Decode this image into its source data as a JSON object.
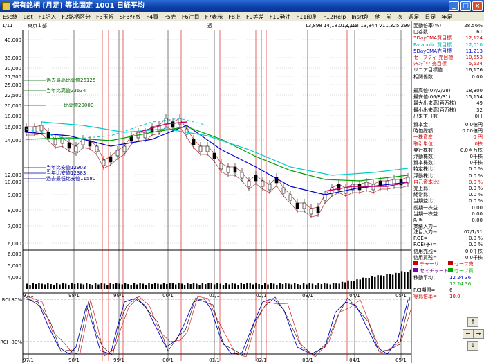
{
  "window": {
    "title": "保有銘柄 [月足] 等比固定  1001  日経平均",
    "minimize": "_",
    "maximize": "□",
    "close": "×"
  },
  "menu": [
    "Esc終",
    "List",
    "F1記入",
    "F2銘柄区分",
    "F3玉帳",
    "SF3ｸｫｵﾀ",
    "F4買",
    "F5売",
    "F6注目",
    "F7表示",
    "F8上",
    "F9等差",
    "F10発注",
    "F11印刷",
    "F12Help",
    "Insrt削",
    "他",
    "前",
    "次",
    "週足",
    "日足",
    "年足"
  ],
  "header": {
    "left_date": "1/11",
    "market": "東京１部",
    "mid_mark": "週",
    "date": "01/1/31",
    "prices": "13,898  14,187  13,124  13,844  V11,325,299"
  },
  "price_axis": [
    "40,000",
    "35,000",
    "30,000",
    "27,500",
    "25,000",
    "22,500",
    "20,000",
    "18,000",
    "16,000",
    "14,000",
    "12,000",
    "10,000",
    "9,000",
    "8,000",
    "7,000",
    "6,000"
  ],
  "volume_axis": [
    "6,000",
    "5,000",
    "4,000"
  ],
  "rci_labels": {
    "top": "RCI 80%",
    "bottom": "RCI -80%"
  },
  "x_labels": [
    "97/1",
    "98/1",
    "99/1",
    "00/1",
    "01/1",
    "02/1",
    "03/1",
    "04/1",
    "05/1"
  ],
  "annotations": {
    "past_high": "過去最高比高値26125",
    "year_high": "当年比高値23634",
    "high_20000": "比高値20000",
    "year_low": "当年比安値12903",
    "year_low2": "当年比安値12383",
    "past_low": "過去最低比安値11580"
  },
  "side": {
    "rows": [
      {
        "label": "変動倍率(%)",
        "value": "28.56%",
        "color": "#000000"
      },
      {
        "label": "山谷数",
        "value": "61",
        "color": "#000000"
      },
      {
        "label": "5DayCMA買目標",
        "value": "12,124",
        "color": "#cc0000"
      },
      {
        "label": "Parabolic 買目標",
        "value": "12,010",
        "color": "#00aaaa"
      },
      {
        "label": "5DayCMA売目標",
        "value": "11,213",
        "color": "#0000cc"
      },
      {
        "label": "セーフティ 売目標",
        "value": "10,553",
        "color": "#cc0000"
      },
      {
        "label": "ｼｬﾝﾃﾞﾘｱ 売目標",
        "value": "5,534",
        "color": "#cc0000"
      },
      {
        "label": "リニア目標値",
        "value": "16,176",
        "color": "#000000"
      },
      {
        "label": "相関係数",
        "value": "0.00",
        "color": "#000000"
      }
    ],
    "rows2": [
      {
        "label": "最高値(07/2/28)",
        "value": "18,300",
        "color": "#000000"
      },
      {
        "label": "最安値(06/8/31)",
        "value": "15,154",
        "color": "#000000"
      },
      {
        "label": "最大出来高(百万株)",
        "value": "49",
        "color": "#000000"
      },
      {
        "label": "最小出来高(百万株)",
        "value": "32",
        "color": "#000000"
      },
      {
        "label": "出来ず日数",
        "value": "0日",
        "color": "#000000"
      }
    ],
    "rows3": [
      {
        "label": "資本金：",
        "value": "0.0億円",
        "color": "#000000"
      },
      {
        "label": "時価総額：",
        "value": "0.00億円",
        "color": "#000000"
      },
      {
        "label": "一株資産：",
        "value": "0 円",
        "color": "#cc0000"
      },
      {
        "label": "取引単位：",
        "value": "0株",
        "color": "#cc0000"
      },
      {
        "label": "発行株数：",
        "value": "0.0百万株",
        "color": "#000000"
      },
      {
        "label": "浮動株数：",
        "value": "0千株",
        "color": "#000000"
      },
      {
        "label": "資本株数：",
        "value": "0千株",
        "color": "#000000"
      },
      {
        "label": "特定株比：",
        "value": "0.0 %",
        "color": "#000000"
      },
      {
        "label": "浮動株比：",
        "value": "0.0 %",
        "color": "#000000"
      },
      {
        "label": "自己資本比：",
        "value": "0.0 %",
        "color": "#cc0000"
      },
      {
        "label": "売上比：",
        "value": "0.0 %",
        "color": "#000000"
      },
      {
        "label": "経常比：",
        "value": "0.0 %",
        "color": "#000000"
      },
      {
        "label": "当期益比：",
        "value": "0.0 %",
        "color": "#000000"
      },
      {
        "label": "前期一株益",
        "value": "0.00",
        "color": "#000000"
      },
      {
        "label": "当期一株益",
        "value": "0.00",
        "color": "#000000"
      },
      {
        "label": "配当",
        "value": "0.00",
        "color": "#000000"
      },
      {
        "label": "業績入力→",
        "value": "",
        "color": "#000000"
      }
    ],
    "rows4": [
      {
        "label": "注目入力→",
        "value": "07/1/31",
        "color": "#000000"
      },
      {
        "label": "ROE=",
        "value": "0.0 %",
        "color": "#000000"
      },
      {
        "label": "ROE(予)=",
        "value": "0.0 %",
        "color": "#000000"
      },
      {
        "label": "信用売残=",
        "value": "0.0千株",
        "color": "#000000"
      },
      {
        "label": "信用買残=",
        "value": "0.0千株",
        "color": "#000000"
      }
    ],
    "legend": [
      {
        "label": "チャーリ",
        "color": "#cc0000"
      },
      {
        "label": "セーフ売",
        "color": "#cc0000"
      },
      {
        "label": "セミチャート",
        "color": "#7a00aa"
      },
      {
        "label": "セーフ買",
        "color": "#00aa00"
      }
    ],
    "ma_label": "移動平均：",
    "ma_values": "12  24  36",
    "ma_values2": "12  24  36",
    "rci_label": "RCI期間=",
    "rci_value": "6",
    "ratio_label": "等比倍率=",
    "ratio_value": "10.0"
  },
  "nav": {
    "up": "↑",
    "left": "←",
    "right": "→",
    "down": "↓"
  }
}
